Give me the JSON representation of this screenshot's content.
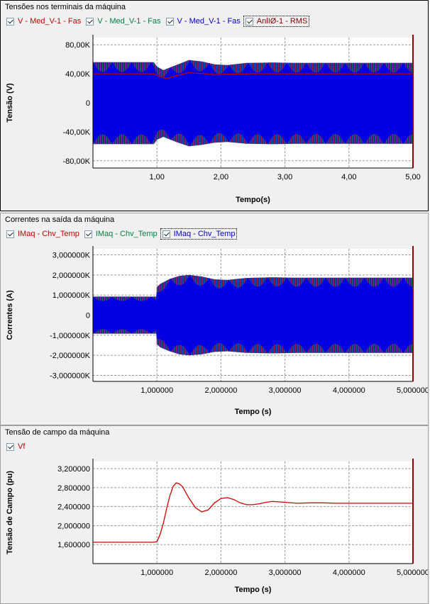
{
  "panels": [
    {
      "title": "Tensões nos terminais da máquina",
      "legend": [
        {
          "label": "V - Med_V-1 - Fas",
          "color": "#c00000"
        },
        {
          "label": "V - Med_V-1 - Fas",
          "color": "#008040"
        },
        {
          "label": "V - Med_V-1 - Fas",
          "color": "#0000c0"
        },
        {
          "label": "AnlIØ-1 - RMS",
          "color": "#800000"
        }
      ]
    },
    {
      "title": "Correntes na saída da máquina",
      "legend": [
        {
          "label": "IMaq - Chv_Temp",
          "color": "#c00000"
        },
        {
          "label": "IMaq - Chv_Temp",
          "color": "#008040"
        },
        {
          "label": "IMaq - Chv_Temp",
          "color": "#0000c0"
        }
      ]
    },
    {
      "title": "Tensão de campo da máquina",
      "legend": [
        {
          "label": "Vf",
          "color": "#c00000"
        }
      ]
    }
  ],
  "chart_data": [
    {
      "type": "line",
      "title": "Tensões nos terminais da máquina",
      "xlabel": "Tempo(s)",
      "ylabel": "Tensão (V)",
      "xlim": [
        0,
        5
      ],
      "ylim": [
        -90000,
        90000
      ],
      "xticks": [
        1,
        2,
        3,
        4,
        5
      ],
      "xtick_labels": [
        "1,00",
        "2,00",
        "3,00",
        "4,00",
        "5,00"
      ],
      "yticks": [
        80000,
        40000,
        0,
        -40000,
        -80000
      ],
      "ytick_labels": [
        "80,00K",
        "40,00K",
        "0",
        "-40,00K",
        "-80,00K"
      ],
      "grid": true,
      "series": [
        {
          "name": "V - Med_V-1 - Fas",
          "color": "#0000e0",
          "kind": "envelope",
          "x": [
            0,
            0.95,
            1.0,
            1.1,
            1.3,
            1.5,
            1.7,
            1.9,
            2.1,
            2.4,
            2.8,
            3.2,
            5.0
          ],
          "upper": [
            56000,
            56000,
            50000,
            45000,
            52000,
            59000,
            57000,
            53000,
            52000,
            55000,
            55500,
            55000,
            55000
          ],
          "lower": [
            -57000,
            -57000,
            -51000,
            -47000,
            -54000,
            -60000,
            -58000,
            -55000,
            -54000,
            -56500,
            -57000,
            -56500,
            -56500
          ]
        },
        {
          "name": "AnlIØ-1 - RMS",
          "color": "#c00000",
          "x": [
            0,
            0.95,
            1.05,
            1.15,
            1.3,
            1.5,
            1.7,
            1.9,
            2.1,
            2.5,
            5.0
          ],
          "y": [
            40000,
            40000,
            36000,
            33500,
            37500,
            41500,
            40500,
            39000,
            39500,
            40000,
            40000
          ]
        }
      ]
    },
    {
      "type": "line",
      "title": "Correntes na saída da máquina",
      "xlabel": "Tempo (s)",
      "ylabel": "Correntes (A)",
      "xlim": [
        0,
        5
      ],
      "ylim": [
        -3300000,
        3300000
      ],
      "xticks": [
        1,
        2,
        3,
        4,
        5
      ],
      "xtick_labels": [
        "1,000000",
        "2,000000",
        "3,000000",
        "4,000000",
        "5,000000"
      ],
      "yticks": [
        3000000,
        2000000,
        1000000,
        0,
        -1000000,
        -2000000,
        -3000000
      ],
      "ytick_labels": [
        "3,000000K",
        "2,000000K",
        "1,000000K",
        "0",
        "-1,000000K",
        "-2,000000K",
        "-3,000000K"
      ],
      "grid": true,
      "series": [
        {
          "name": "IMaq - Chv_Temp",
          "color": "#0000e0",
          "kind": "envelope",
          "x": [
            0,
            0.99,
            1.0,
            1.05,
            1.2,
            1.35,
            1.5,
            1.7,
            1.9,
            2.1,
            2.4,
            2.8,
            3.2,
            5.0
          ],
          "upper": [
            920000,
            920000,
            1400000,
            1550000,
            1800000,
            1950000,
            2000000,
            1920000,
            1780000,
            1750000,
            1850000,
            1880000,
            1860000,
            1860000
          ],
          "lower": [
            -920000,
            -920000,
            -1450000,
            -1600000,
            -1800000,
            -1950000,
            -2000000,
            -1950000,
            -1830000,
            -1800000,
            -1880000,
            -1900000,
            -1880000,
            -1880000
          ]
        }
      ]
    },
    {
      "type": "line",
      "title": "Tensão de campo da máquina",
      "xlabel": "Tempo (s)",
      "ylabel": "Tensão de Campo (pu)",
      "xlim": [
        0,
        5
      ],
      "ylim": [
        1.2,
        3.35
      ],
      "xticks": [
        1,
        2,
        3,
        4,
        5
      ],
      "xtick_labels": [
        "1,000000",
        "2,000000",
        "3,000000",
        "4,000000",
        "5,000000"
      ],
      "yticks": [
        3.2,
        2.8,
        2.4,
        2.0,
        1.6
      ],
      "ytick_labels": [
        "3,200000",
        "2,800000",
        "2,400000",
        "2,000000",
        "1,600000"
      ],
      "grid": true,
      "series": [
        {
          "name": "Vf",
          "color": "#d00000",
          "x": [
            0,
            0.95,
            1.0,
            1.05,
            1.1,
            1.15,
            1.2,
            1.25,
            1.3,
            1.35,
            1.4,
            1.5,
            1.6,
            1.7,
            1.8,
            1.9,
            2.0,
            2.1,
            2.2,
            2.3,
            2.4,
            2.5,
            2.6,
            2.7,
            2.8,
            2.9,
            3.0,
            3.2,
            3.4,
            3.6,
            3.8,
            4.0,
            5.0
          ],
          "y": [
            1.65,
            1.65,
            1.66,
            1.82,
            2.05,
            2.35,
            2.62,
            2.82,
            2.9,
            2.88,
            2.82,
            2.58,
            2.38,
            2.29,
            2.33,
            2.48,
            2.57,
            2.59,
            2.55,
            2.48,
            2.44,
            2.44,
            2.46,
            2.49,
            2.51,
            2.5,
            2.49,
            2.47,
            2.48,
            2.48,
            2.47,
            2.47,
            2.47
          ]
        }
      ]
    }
  ]
}
